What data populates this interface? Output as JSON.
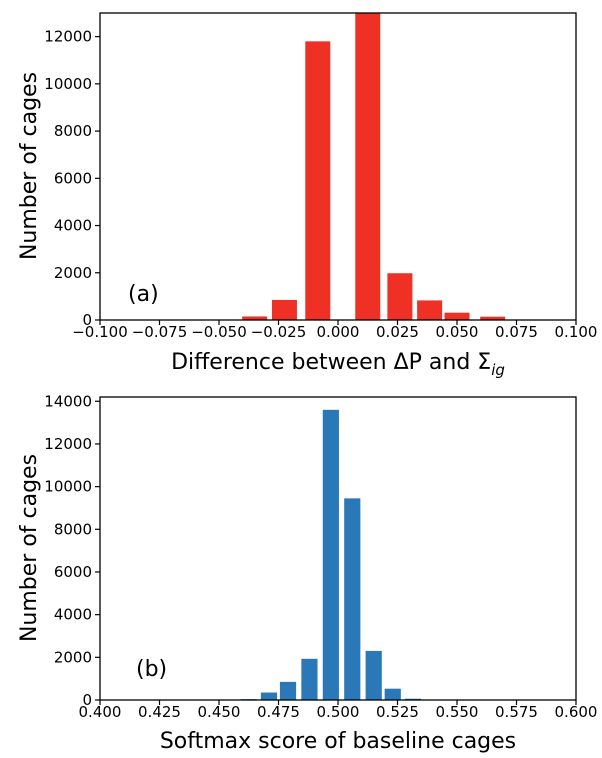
{
  "chart_data": [
    {
      "type": "bar",
      "panel_label": "(a)",
      "color": "#ee3124",
      "xlabel": "Difference between ΔP and Σ",
      "xlabel_subscript": "ig",
      "ylabel": "Number of cages",
      "xlim": [
        -0.1,
        0.1
      ],
      "ylim": [
        0,
        13000
      ],
      "xticks": [
        -0.1,
        -0.075,
        -0.05,
        -0.025,
        0.0,
        0.025,
        0.05,
        0.075,
        0.1
      ],
      "xtick_labels": [
        "−0.100",
        "−0.075",
        "−0.050",
        "−0.025",
        "0.000",
        "0.025",
        "0.050",
        "0.075",
        "0.100"
      ],
      "yticks": [
        0,
        2000,
        4000,
        6000,
        8000,
        10000,
        12000
      ],
      "ytick_labels": [
        "0",
        "2000",
        "4000",
        "6000",
        "8000",
        "10000",
        "12000"
      ],
      "bar_width": 0.0105,
      "grid": false,
      "x": [
        -0.035,
        -0.0225,
        -0.0085,
        0.0125,
        0.026,
        0.0385,
        0.05,
        0.065,
        0.0775
      ],
      "values": [
        150,
        850,
        11800,
        13000,
        1980,
        830,
        310,
        140,
        10
      ]
    },
    {
      "type": "bar",
      "panel_label": "(b)",
      "color": "#2a78b8",
      "xlabel": "Softmax score of baseline cages",
      "xlabel_subscript": "",
      "ylabel": "Number of cages",
      "xlim": [
        0.4,
        0.6
      ],
      "ylim": [
        0,
        14200
      ],
      "xticks": [
        0.4,
        0.425,
        0.45,
        0.475,
        0.5,
        0.525,
        0.55,
        0.575,
        0.6
      ],
      "xtick_labels": [
        "0.400",
        "0.425",
        "0.450",
        "0.475",
        "0.500",
        "0.525",
        "0.550",
        "0.575",
        "0.600"
      ],
      "yticks": [
        0,
        2000,
        4000,
        6000,
        8000,
        10000,
        12000,
        14000
      ],
      "ytick_labels": [
        "0",
        "2000",
        "4000",
        "6000",
        "8000",
        "10000",
        "12000",
        "14000"
      ],
      "bar_width": 0.0068,
      "grid": false,
      "x": [
        0.4625,
        0.471,
        0.479,
        0.488,
        0.497,
        0.506,
        0.515,
        0.523,
        0.5315,
        0.54
      ],
      "values": [
        40,
        350,
        850,
        1930,
        13600,
        9450,
        2300,
        530,
        60,
        10
      ]
    }
  ]
}
